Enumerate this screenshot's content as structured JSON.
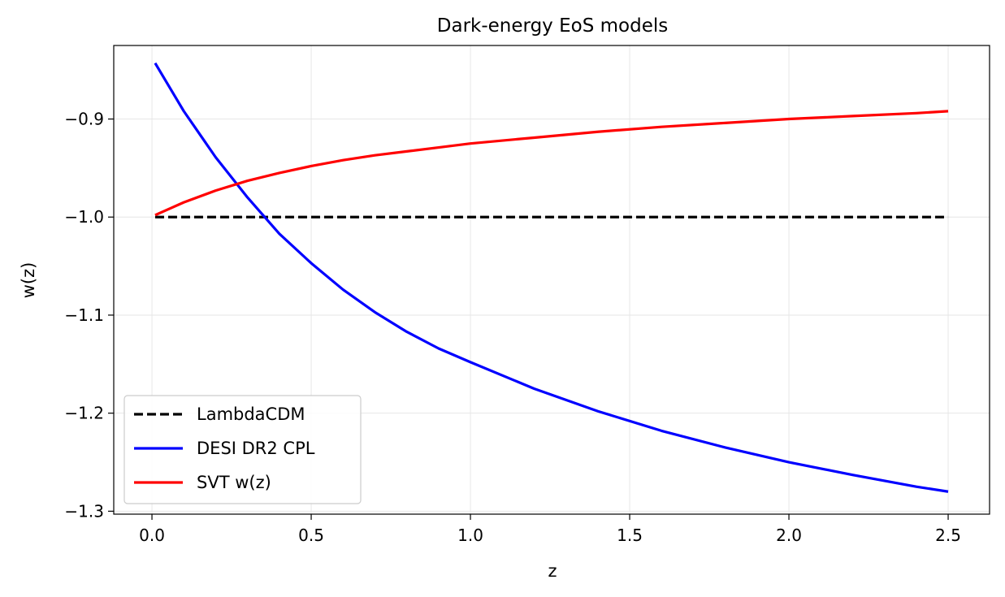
{
  "chart_data": {
    "type": "line",
    "title": "Dark-energy EoS models",
    "xlabel": "z",
    "ylabel": "w(z)",
    "xlim": [
      -0.12,
      2.63
    ],
    "ylim": [
      -1.303,
      -0.825
    ],
    "xticks": [
      0.0,
      0.5,
      1.0,
      1.5,
      2.0,
      2.5
    ],
    "xtick_labels": [
      "0.0",
      "0.5",
      "1.0",
      "1.5",
      "2.0",
      "2.5"
    ],
    "yticks": [
      -1.3,
      -1.2,
      -1.1,
      -1.0,
      -0.9
    ],
    "ytick_labels": [
      "−1.3",
      "−1.2",
      "−1.1",
      "−1.0",
      "−0.9"
    ],
    "grid": true,
    "legend_position": "lower-left",
    "series": [
      {
        "name": "LambdaCDM",
        "color": "#000000",
        "style": "dashed",
        "x": [
          0.01,
          2.5
        ],
        "y": [
          -1.0,
          -1.0
        ]
      },
      {
        "name": "DESI DR2 CPL",
        "color": "#0000ff",
        "style": "solid",
        "x": [
          0.01,
          0.1,
          0.2,
          0.3,
          0.4,
          0.5,
          0.6,
          0.7,
          0.8,
          0.9,
          1.0,
          1.2,
          1.4,
          1.6,
          1.8,
          2.0,
          2.2,
          2.4,
          2.5
        ],
        "y": [
          -0.843,
          -0.892,
          -0.939,
          -0.98,
          -1.017,
          -1.047,
          -1.074,
          -1.097,
          -1.117,
          -1.134,
          -1.148,
          -1.175,
          -1.198,
          -1.218,
          -1.235,
          -1.25,
          -1.263,
          -1.275,
          -1.28
        ]
      },
      {
        "name": "SVT w(z)",
        "color": "#ff0000",
        "style": "solid",
        "x": [
          0.01,
          0.1,
          0.2,
          0.3,
          0.4,
          0.5,
          0.6,
          0.7,
          0.8,
          0.9,
          1.0,
          1.2,
          1.4,
          1.6,
          1.8,
          2.0,
          2.2,
          2.4,
          2.5
        ],
        "y": [
          -0.998,
          -0.985,
          -0.973,
          -0.963,
          -0.955,
          -0.948,
          -0.942,
          -0.937,
          -0.933,
          -0.929,
          -0.925,
          -0.919,
          -0.913,
          -0.908,
          -0.904,
          -0.9,
          -0.897,
          -0.894,
          -0.892
        ]
      }
    ]
  }
}
